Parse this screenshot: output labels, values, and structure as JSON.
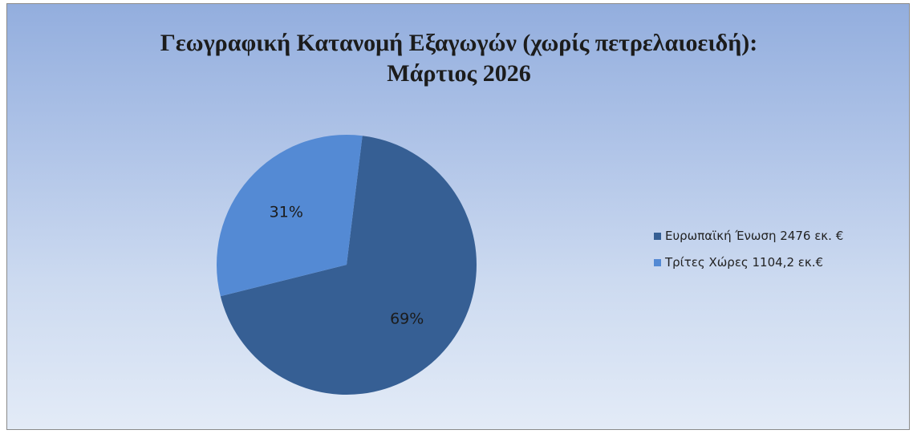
{
  "chart_data": {
    "type": "pie",
    "title": "Γεωγραφική Κατανομή Εξαγωγών (χωρίς πετρελαιοειδή):",
    "subtitle": "Μάρτιος 2026",
    "legend_position": "right",
    "slices": [
      {
        "legend": "Ευρωπαϊκή Ένωση 2476 εκ. €",
        "value": 2476,
        "percent_label": "69%",
        "color": "#365f94"
      },
      {
        "legend": "Τρίτες Χώρες 1104,2 εκ.€",
        "value": 1104.2,
        "percent_label": "31%",
        "color": "#548ad4"
      }
    ]
  }
}
